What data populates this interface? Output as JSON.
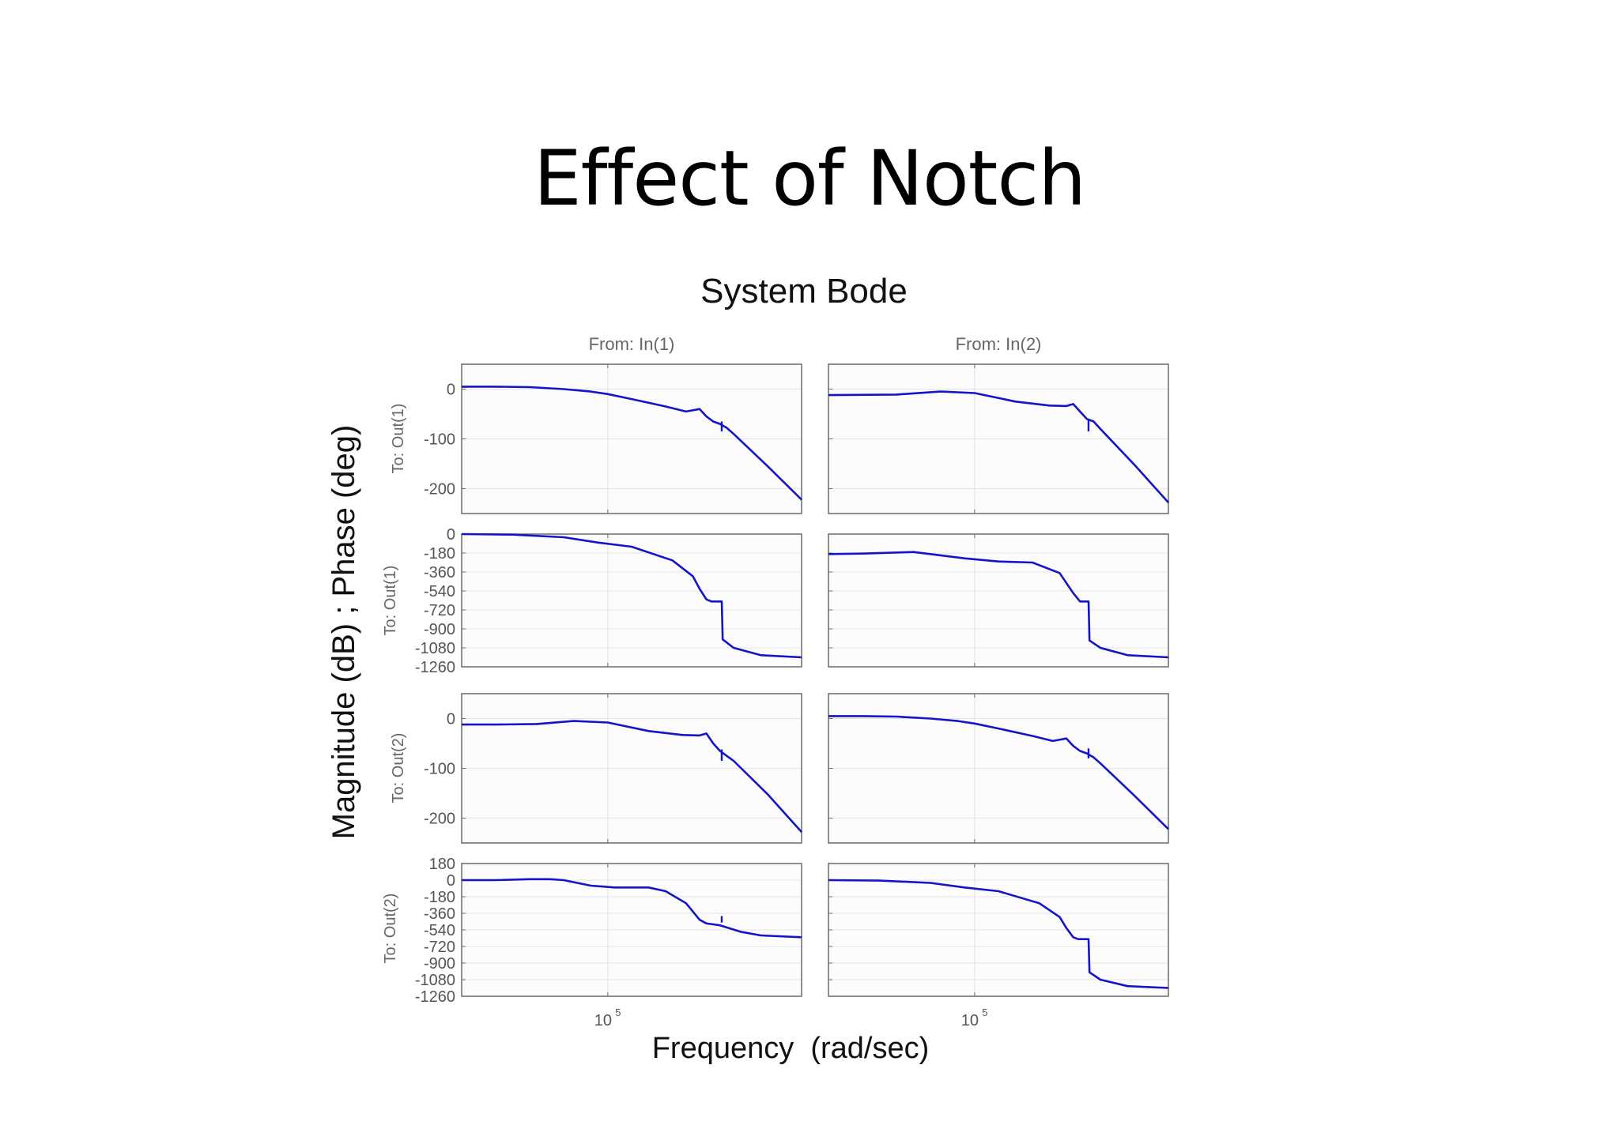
{
  "slide": {
    "title": "Effect of Notch"
  },
  "chart_data": {
    "type": "line",
    "title": "System Bode",
    "xlabel": "Frequency  (rad/sec)",
    "ylabel": "Magnitude (dB) ; Phase (deg)",
    "xscale": "log",
    "x_tick_labels": [
      {
        "base": "10",
        "exp": "5",
        "value": 100000
      }
    ],
    "column_titles": [
      "From: In(1)",
      "From: In(2)"
    ],
    "row_titles": [
      "To: Out(1)",
      "To: Out(1)",
      "To: Out(2)",
      "To: Out(2)"
    ],
    "rows": [
      {
        "kind": "magnitude",
        "ylabel": "To: Out(1)",
        "ylim": [
          -250,
          50
        ],
        "yticks": [
          0,
          -100,
          -200
        ],
        "series": [
          {
            "name": "In(1) to Out(1) magnitude",
            "color": "#1414c8",
            "x": [
              0,
              0.1,
              0.2,
              0.3,
              0.38,
              0.43,
              0.5,
              0.6,
              0.66,
              0.7,
              0.72,
              0.74,
              0.76,
              0.78,
              0.8,
              0.9,
              1.0
            ],
            "y": [
              5,
              5,
              4,
              0,
              -5,
              -10,
              -20,
              -35,
              -45,
              -40,
              -55,
              -65,
              -70,
              -78,
              -90,
              -155,
              -222
            ],
            "notch": {
              "x": 0.765,
              "y": [
                -65,
                -85
              ]
            }
          },
          {
            "name": "In(2) to Out(1) magnitude",
            "color": "#1414c8",
            "x": [
              0,
              0.2,
              0.33,
              0.43,
              0.55,
              0.65,
              0.7,
              0.72,
              0.74,
              0.76,
              0.78,
              0.8,
              0.9,
              1.0
            ],
            "y": [
              -12,
              -11,
              -5,
              -8,
              -25,
              -33,
              -34,
              -30,
              -45,
              -60,
              -65,
              -80,
              -152,
              -228
            ],
            "notch": {
              "x": 0.765,
              "y": [
                -62,
                -85
              ]
            }
          }
        ]
      },
      {
        "kind": "phase",
        "ylabel": "To: Out(1)",
        "ylim": [
          -1260,
          0
        ],
        "yticks": [
          0,
          -180,
          -360,
          -540,
          -720,
          -900,
          -1080,
          -1260
        ],
        "series": [
          {
            "name": "In(1) to Out(1) phase",
            "color": "#1414c8",
            "x": [
              0,
              0.15,
              0.3,
              0.4,
              0.5,
              0.62,
              0.68,
              0.7,
              0.72,
              0.735,
              0.76,
              0.765,
              0.768,
              0.8,
              0.88,
              1.0
            ],
            "y": [
              0,
              -5,
              -30,
              -80,
              -120,
              -250,
              -400,
              -520,
              -620,
              -640,
              -640,
              -640,
              -1000,
              -1080,
              -1150,
              -1170
            ],
            "notch": null
          },
          {
            "name": "In(2) to Out(1) phase",
            "color": "#1414c8",
            "x": [
              0,
              0.1,
              0.25,
              0.4,
              0.5,
              0.6,
              0.68,
              0.72,
              0.74,
              0.76,
              0.765,
              0.768,
              0.8,
              0.88,
              1.0
            ],
            "y": [
              -190,
              -185,
              -170,
              -230,
              -260,
              -270,
              -370,
              -560,
              -640,
              -640,
              -640,
              -1010,
              -1080,
              -1150,
              -1170
            ],
            "notch": null
          }
        ]
      },
      {
        "kind": "magnitude",
        "ylabel": "To: Out(2)",
        "ylim": [
          -250,
          50
        ],
        "yticks": [
          0,
          -100,
          -200
        ],
        "series": [
          {
            "name": "In(1) to Out(2) magnitude",
            "color": "#1414c8",
            "x": [
              0,
              0.1,
              0.22,
              0.33,
              0.43,
              0.55,
              0.65,
              0.7,
              0.72,
              0.74,
              0.76,
              0.78,
              0.8,
              0.9,
              1.0
            ],
            "y": [
              -12,
              -12,
              -11,
              -5,
              -8,
              -25,
              -33,
              -34,
              -30,
              -50,
              -65,
              -75,
              -85,
              -152,
              -228
            ],
            "notch": {
              "x": 0.765,
              "y": [
                -62,
                -85
              ]
            }
          },
          {
            "name": "In(2) to Out(2) magnitude",
            "color": "#1414c8",
            "x": [
              0,
              0.1,
              0.2,
              0.3,
              0.38,
              0.43,
              0.5,
              0.6,
              0.66,
              0.7,
              0.72,
              0.74,
              0.76,
              0.78,
              0.8,
              0.9,
              1.0
            ],
            "y": [
              5,
              5,
              4,
              0,
              -5,
              -10,
              -20,
              -35,
              -45,
              -40,
              -55,
              -65,
              -70,
              -78,
              -90,
              -155,
              -222
            ],
            "notch": {
              "x": 0.765,
              "y": [
                -60,
                -80
              ]
            }
          }
        ]
      },
      {
        "kind": "phase",
        "ylabel": "To: Out(2)",
        "ylim": [
          -1260,
          180
        ],
        "yticks": [
          180,
          0,
          -180,
          -360,
          -540,
          -720,
          -900,
          -1080,
          -1260
        ],
        "series": [
          {
            "name": "In(1) to Out(2) phase",
            "color": "#1414c8",
            "x": [
              0,
              0.1,
              0.2,
              0.26,
              0.3,
              0.38,
              0.45,
              0.55,
              0.6,
              0.66,
              0.7,
              0.72,
              0.74,
              0.76,
              0.82,
              0.88,
              1.0
            ],
            "y": [
              0,
              0,
              10,
              10,
              0,
              -60,
              -80,
              -80,
              -120,
              -250,
              -430,
              -470,
              -480,
              -490,
              -560,
              -600,
              -620
            ],
            "notch": {
              "x": 0.765,
              "y": [
                -390,
                -460
              ]
            }
          },
          {
            "name": "In(2) to Out(2) phase",
            "color": "#1414c8",
            "x": [
              0,
              0.15,
              0.3,
              0.4,
              0.5,
              0.62,
              0.68,
              0.7,
              0.72,
              0.735,
              0.76,
              0.765,
              0.768,
              0.8,
              0.88,
              1.0
            ],
            "y": [
              0,
              -5,
              -30,
              -80,
              -120,
              -250,
              -400,
              -520,
              -620,
              -640,
              -640,
              -640,
              -1000,
              -1080,
              -1150,
              -1170
            ],
            "notch": null
          }
        ]
      }
    ]
  }
}
